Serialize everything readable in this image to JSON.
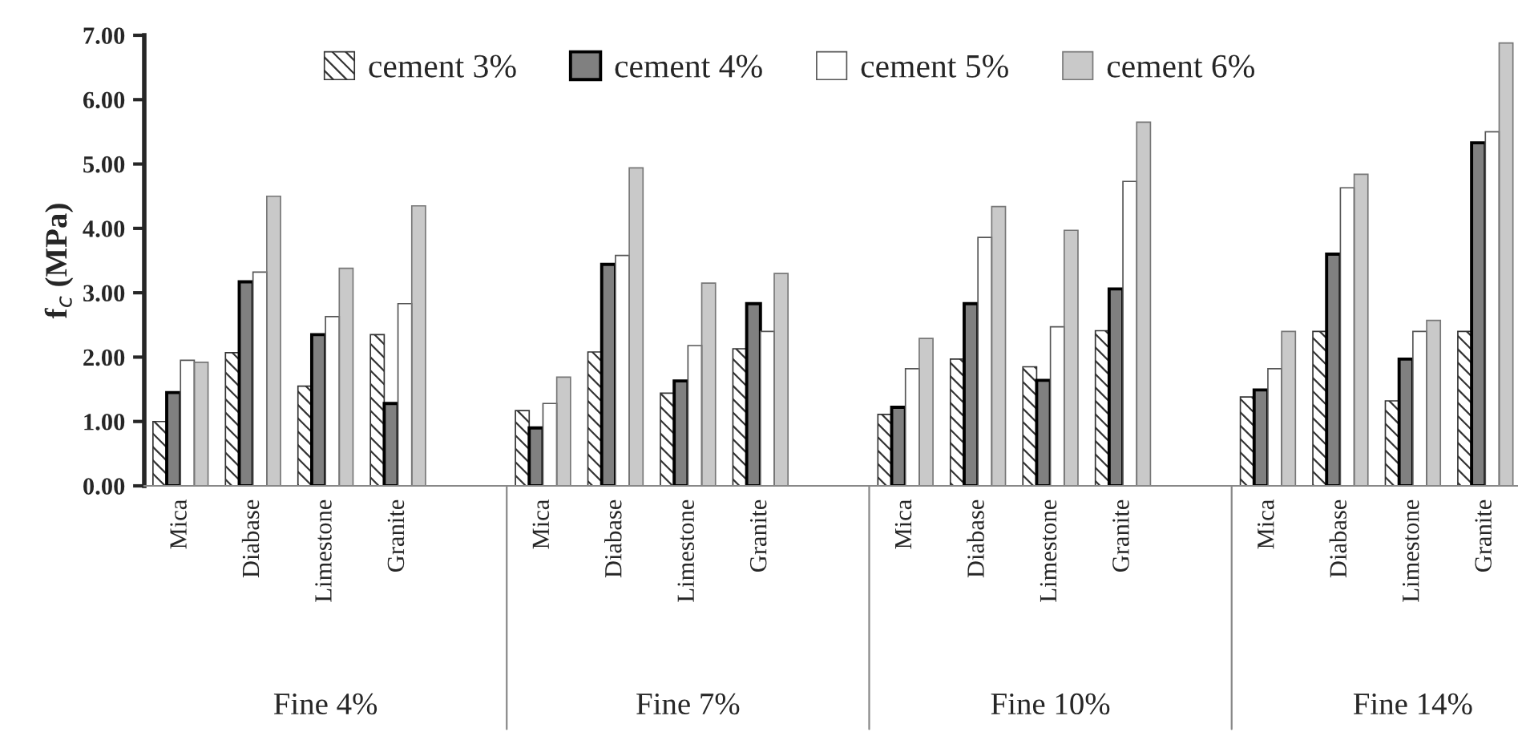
{
  "chart_data": {
    "type": "bar",
    "ylabel": "f$_{c}$ (MPa)",
    "categories": [
      "Mica",
      "Diabase",
      "Limestone",
      "Granite",
      "Mica",
      "Diabase",
      "Limestone",
      "Granite",
      "Mica",
      "Diabase",
      "Limestone",
      "Granite",
      "Mica",
      "Diabase",
      "Limestone",
      "Granite"
    ],
    "series": [
      {
        "name": "cement 3%",
        "color": "#333333",
        "values": [
          1.0,
          2.07,
          1.55,
          2.35,
          1.17,
          2.08,
          1.44,
          2.13,
          1.11,
          1.97,
          1.85,
          2.41,
          1.38,
          2.4,
          1.32,
          2.4
        ]
      },
      {
        "name": "cement 4%",
        "color": "#808080",
        "values": [
          1.45,
          3.17,
          2.35,
          1.28,
          0.9,
          3.44,
          1.63,
          2.83,
          1.22,
          2.83,
          1.64,
          3.06,
          1.49,
          3.6,
          1.97,
          5.33
        ]
      },
      {
        "name": "cement 5%",
        "color": "#ffffff",
        "values": [
          1.95,
          3.32,
          2.63,
          2.83,
          1.28,
          3.58,
          2.18,
          2.4,
          1.82,
          3.86,
          2.47,
          4.73,
          1.82,
          4.63,
          2.4,
          5.5
        ]
      },
      {
        "name": "cement 6%",
        "color": "#777777",
        "values": [
          1.92,
          4.5,
          3.38,
          4.35,
          1.69,
          4.94,
          3.15,
          3.3,
          2.29,
          4.34,
          3.97,
          5.65,
          2.4,
          4.84,
          2.57,
          6.88
        ]
      }
    ],
    "annotations": [
      "Fine 4%",
      "Fine 7%",
      "Fine 10%",
      "Fine 14%"
    ],
    "ylim": [
      0,
      7
    ],
    "yticks": [
      {
        "value": 0,
        "label": "0.00"
      },
      {
        "value": 1,
        "label": "1.00"
      },
      {
        "value": 2,
        "label": "2.00"
      },
      {
        "value": 3,
        "label": "3.00"
      },
      {
        "value": 4,
        "label": "4.00"
      },
      {
        "value": 5,
        "label": "5.00"
      },
      {
        "value": 6,
        "label": "6.00"
      },
      {
        "value": 7,
        "label": "7.00"
      }
    ],
    "legend": "top",
    "grid": false
  }
}
